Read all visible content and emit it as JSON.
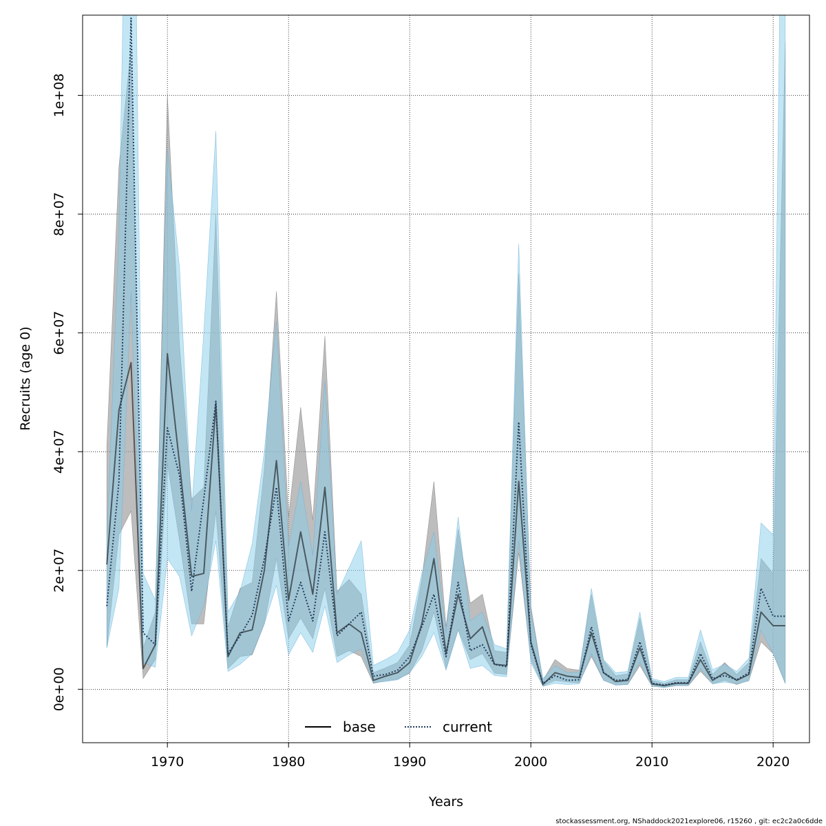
{
  "chart_data": {
    "type": "line",
    "title": "",
    "xlabel": "Years",
    "ylabel": "Recruits (age 0)",
    "xlim": [
      1963,
      2023
    ],
    "ylim": [
      -9000000,
      113500000
    ],
    "x_ticks": [
      1970,
      1980,
      1990,
      2000,
      2010,
      2020
    ],
    "x_tick_labels": [
      "1970",
      "1980",
      "1990",
      "2000",
      "2010",
      "2020"
    ],
    "y_ticks": [
      0,
      20000000,
      40000000,
      60000000,
      80000000,
      100000000
    ],
    "y_tick_labels": [
      "0e+00",
      "2e+07",
      "4e+07",
      "6e+07",
      "8e+07",
      "1e+08"
    ],
    "grid": true,
    "legend_position": "bottom-center",
    "series": [
      {
        "name": "base",
        "line_style": "solid",
        "line_color": "#000000",
        "band_color": "#999999",
        "x": [
          1965,
          1966,
          1967,
          1968,
          1969,
          1970,
          1971,
          1972,
          1973,
          1974,
          1975,
          1976,
          1977,
          1978,
          1979,
          1980,
          1981,
          1982,
          1983,
          1984,
          1985,
          1986,
          1987,
          1988,
          1989,
          1990,
          1991,
          1992,
          1993,
          1994,
          1995,
          1996,
          1997,
          1998,
          1999,
          2000,
          2001,
          2002,
          2003,
          2004,
          2005,
          2006,
          2007,
          2008,
          2009,
          2010,
          2011,
          2012,
          2013,
          2014,
          2015,
          2016,
          2017,
          2018,
          2019,
          2020,
          2021
        ],
        "values": [
          21000000,
          47000000,
          55000000,
          3500000,
          7500000,
          56500000,
          38000000,
          19000000,
          19500000,
          48000000,
          5500000,
          9500000,
          10000000,
          20000000,
          38500000,
          15000000,
          26500000,
          16000000,
          34000000,
          9500000,
          11000000,
          9500000,
          1500000,
          2200000,
          2800000,
          4500000,
          11000000,
          22000000,
          6000000,
          16000000,
          8500000,
          10500000,
          4200000,
          4000000,
          35000000,
          8000000,
          800000,
          2800000,
          2200000,
          2000000,
          9500000,
          2800000,
          1300000,
          1500000,
          7000000,
          900000,
          600000,
          1000000,
          1000000,
          5000000,
          1500000,
          2800000,
          1500000,
          2500000,
          13000000,
          10700000,
          10700000
        ],
        "lower": [
          7000000,
          26000000,
          30000000,
          1800000,
          5000000,
          38000000,
          25000000,
          11000000,
          11000000,
          30000000,
          3500000,
          5500000,
          5800000,
          11000000,
          22000000,
          8500000,
          12000000,
          8500000,
          17000000,
          5500000,
          6500000,
          5500000,
          1000000,
          1400000,
          1700000,
          2700000,
          6500000,
          13000000,
          3500000,
          10000000,
          5000000,
          6000000,
          2700000,
          2500000,
          23000000,
          5000000,
          500000,
          1500000,
          1200000,
          1100000,
          5500000,
          1500000,
          700000,
          800000,
          4000000,
          500000,
          300000,
          600000,
          600000,
          3000000,
          900000,
          1500000,
          800000,
          1500000,
          8000000,
          6000000,
          1000000
        ],
        "upper": [
          41000000,
          88000000,
          108000000,
          7000000,
          13000000,
          100000000,
          58000000,
          32000000,
          34000000,
          80000000,
          10500000,
          17000000,
          18000000,
          37000000,
          67000000,
          29000000,
          47500000,
          28500000,
          59500000,
          16500000,
          18500000,
          16000000,
          2800000,
          3600000,
          4500000,
          7500000,
          18500000,
          35000000,
          10500000,
          27000000,
          14500000,
          16000000,
          6500000,
          6200000,
          70000000,
          14000000,
          1500000,
          5000000,
          3500000,
          3200000,
          16000000,
          4800000,
          2300000,
          2600000,
          12000000,
          1500000,
          1000000,
          1600000,
          1600000,
          8000000,
          2500000,
          4500000,
          2500000,
          4500000,
          22000000,
          19500000,
          109000000
        ]
      },
      {
        "name": "current",
        "line_style": "dotted",
        "line_color": "#1f3a5a",
        "band_color": "#87ceeb",
        "x": [
          1965,
          1966,
          1967,
          1968,
          1969,
          1970,
          1971,
          1972,
          1973,
          1974,
          1975,
          1976,
          1977,
          1978,
          1979,
          1980,
          1981,
          1982,
          1983,
          1984,
          1985,
          1986,
          1987,
          1988,
          1989,
          1990,
          1991,
          1992,
          1993,
          1994,
          1995,
          1996,
          1997,
          1998,
          1999,
          2000,
          2001,
          2002,
          2003,
          2004,
          2005,
          2006,
          2007,
          2008,
          2009,
          2010,
          2011,
          2012,
          2013,
          2014,
          2015,
          2016,
          2017,
          2018,
          2019,
          2020,
          2021
        ],
        "values": [
          14000000,
          35000000,
          113000000,
          9500000,
          7500000,
          44000000,
          36000000,
          16500000,
          32000000,
          48500000,
          6000000,
          9000000,
          12500000,
          22000000,
          34000000,
          11500000,
          18000000,
          11500000,
          26500000,
          9000000,
          11000000,
          13000000,
          2200000,
          2500000,
          3200000,
          5500000,
          10500000,
          16000000,
          5500000,
          18000000,
          6500000,
          7500000,
          4200000,
          3800000,
          45000000,
          7500000,
          1000000,
          2300000,
          1500000,
          1600000,
          10500000,
          2800000,
          1500000,
          1600000,
          8000000,
          1000000,
          700000,
          1100000,
          1100000,
          6000000,
          1800000,
          2300000,
          1600000,
          2800000,
          17000000,
          12300000,
          12300000
        ],
        "lower": [
          7000000,
          17000000,
          67000000,
          4500000,
          3700000,
          22000000,
          19000000,
          9000000,
          14000000,
          25000000,
          3000000,
          4200000,
          6000000,
          11000000,
          17500000,
          5800000,
          9500000,
          6200000,
          14000000,
          4500000,
          5800000,
          6800000,
          1100000,
          1300000,
          1600000,
          2800000,
          5500000,
          9500000,
          3200000,
          10000000,
          3500000,
          4000000,
          2300000,
          2100000,
          25000000,
          4500000,
          500000,
          1000000,
          800000,
          900000,
          6000000,
          1500000,
          700000,
          800000,
          4500000,
          500000,
          300000,
          600000,
          600000,
          3500000,
          900000,
          1200000,
          900000,
          1400000,
          10000000,
          6000000,
          1000000
        ],
        "upper": [
          25000000,
          77000000,
          190000000,
          19500000,
          15000000,
          91000000,
          71000000,
          30000000,
          60000000,
          94000000,
          13000000,
          16500000,
          24500000,
          40000000,
          62000000,
          24000000,
          35000000,
          22500000,
          52000000,
          16000000,
          20500000,
          25000000,
          4000000,
          5000000,
          6200000,
          10000000,
          19500000,
          26500000,
          9500000,
          29000000,
          11500000,
          13000000,
          7500000,
          6800000,
          75000000,
          13000000,
          1800000,
          4000000,
          2800000,
          2900000,
          17000000,
          5000000,
          2800000,
          3000000,
          13000000,
          1800000,
          1300000,
          2000000,
          2000000,
          10000000,
          3300000,
          4200000,
          3000000,
          5200000,
          28000000,
          26000000,
          190000000
        ]
      }
    ],
    "footer_text": "stockassessment.org, NShaddock2021explore06, r15260 , git: ec2c2a0c6dde"
  }
}
